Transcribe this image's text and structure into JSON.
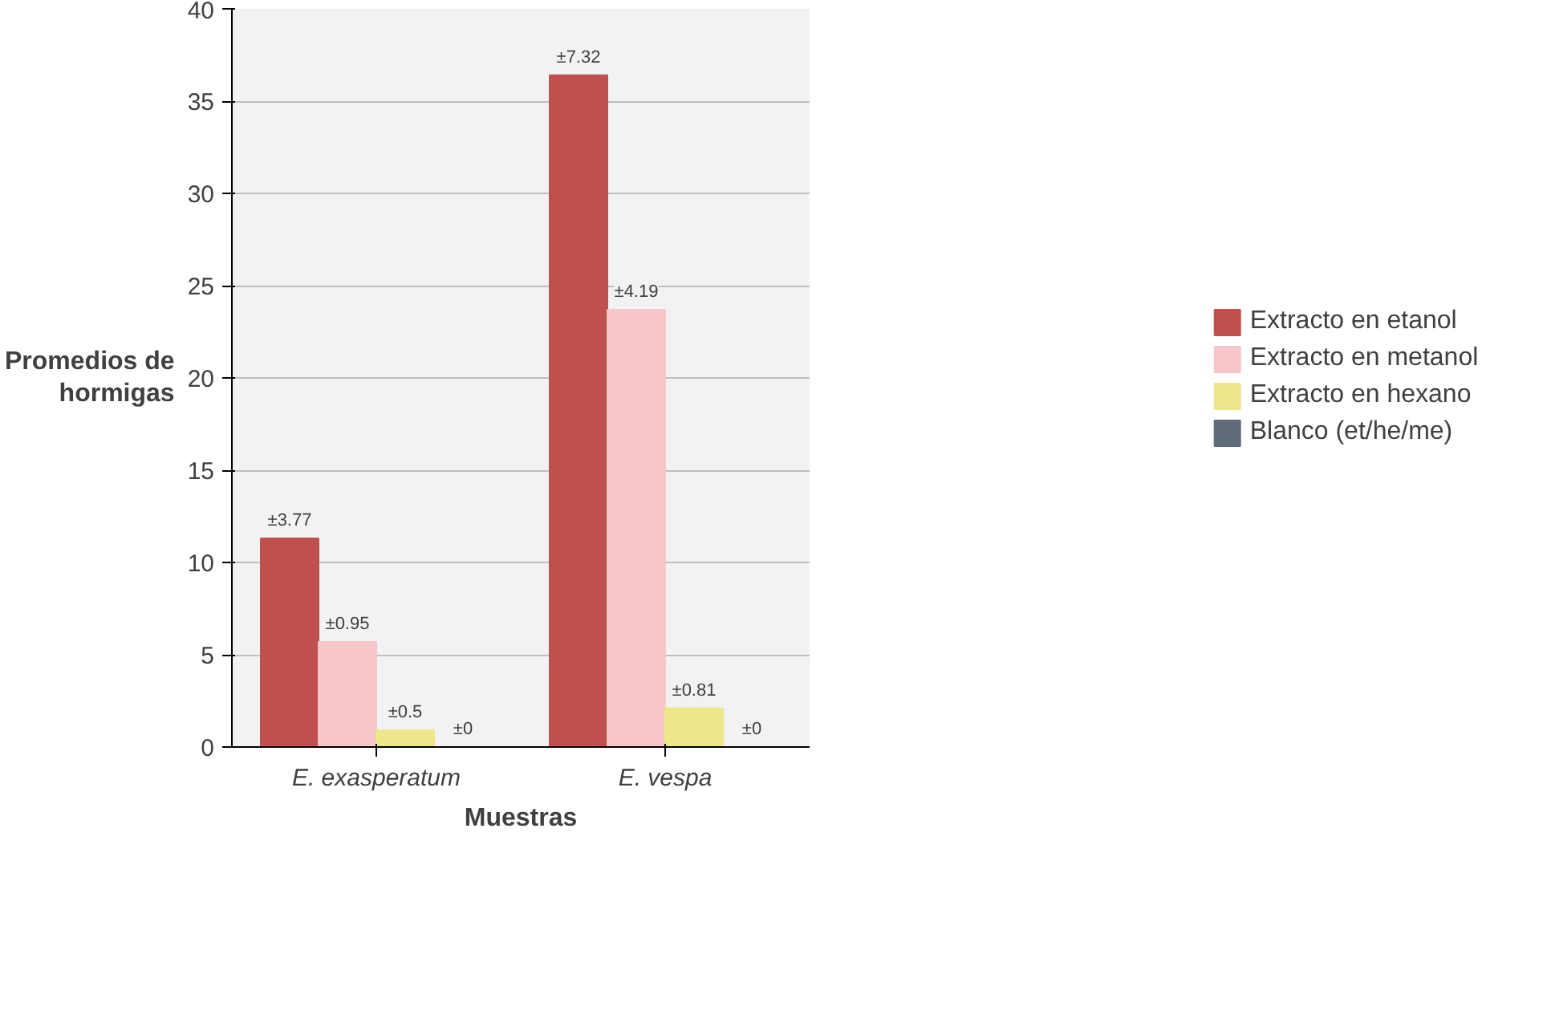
{
  "chart_data": {
    "type": "bar",
    "xlabel": "Muestras",
    "ylabel": "Promedios de\nhormigas",
    "categories": [
      "E. exasperatum",
      "E. vespa"
    ],
    "series": [
      {
        "name": "Extracto en etanol",
        "color": "#c0504d",
        "values": [
          11.3,
          36.4
        ]
      },
      {
        "name": "Extracto en metanol",
        "color": "#f6c6c8",
        "values": [
          5.7,
          23.7
        ]
      },
      {
        "name": "Extracto en hexano",
        "color": "#eee68a",
        "values": [
          0.9,
          2.1
        ]
      },
      {
        "name": "Blanco (et/he/me)",
        "color": "#5f6b7a",
        "values": [
          0,
          0
        ]
      }
    ],
    "annotations": [
      "±3.77",
      "±0.95",
      "±0.5",
      "±0",
      "±7.32",
      "±4.19",
      "±0.81",
      "±0"
    ],
    "ylim": [
      0,
      40
    ],
    "yticks": [
      0,
      5,
      10,
      15,
      20,
      25,
      30,
      35,
      40
    ],
    "grid": "y",
    "legend": "right"
  }
}
